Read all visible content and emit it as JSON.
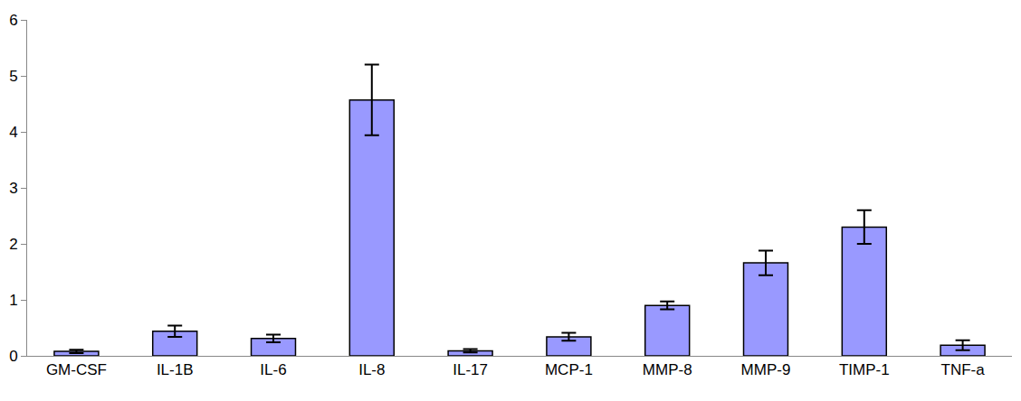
{
  "chart_data": {
    "type": "bar",
    "categories": [
      "GM-CSF",
      "IL-1B",
      "IL-6",
      "IL-8",
      "IL-17",
      "MCP-1",
      "MMP-8",
      "MMP-9",
      "TIMP-1",
      "TNF-a"
    ],
    "values": [
      0.08,
      0.44,
      0.31,
      4.57,
      0.09,
      0.34,
      0.9,
      1.66,
      2.3,
      0.19
    ],
    "errors": [
      0.03,
      0.1,
      0.07,
      0.63,
      0.03,
      0.07,
      0.07,
      0.22,
      0.3,
      0.09
    ],
    "color": "#9999ff",
    "ylim": [
      0,
      6
    ],
    "yticks": [
      0,
      1,
      2,
      3,
      4,
      5,
      6
    ],
    "grid": false
  }
}
